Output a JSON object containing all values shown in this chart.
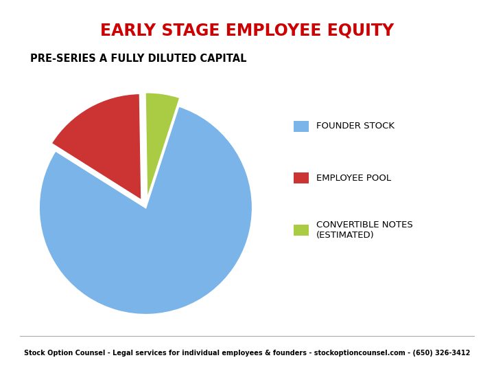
{
  "title": "EARLY STAGE EMPLOYEE EQUITY",
  "subtitle": "PRE-SERIES A FULLY DILUTED CAPITAL",
  "slices": [
    75,
    15,
    5
  ],
  "labels": [
    "FOUNDER STOCK",
    "EMPLOYEE POOL",
    "CONVERTIBLE NOTES\n(ESTIMATED)"
  ],
  "colors": [
    "#7ab4e8",
    "#cc3333",
    "#aacc44"
  ],
  "explode": [
    0.0,
    0.08,
    0.08
  ],
  "start_angle": 72,
  "title_color": "#cc0000",
  "subtitle_color": "#000000",
  "legend_colors": [
    "#7ab4e8",
    "#cc3333",
    "#aacc44"
  ],
  "footer": "Stock Option Counsel - Legal services for individual employees & founders - stockoptioncounsel.com - (650) 326-3412",
  "background_color": "#ffffff"
}
